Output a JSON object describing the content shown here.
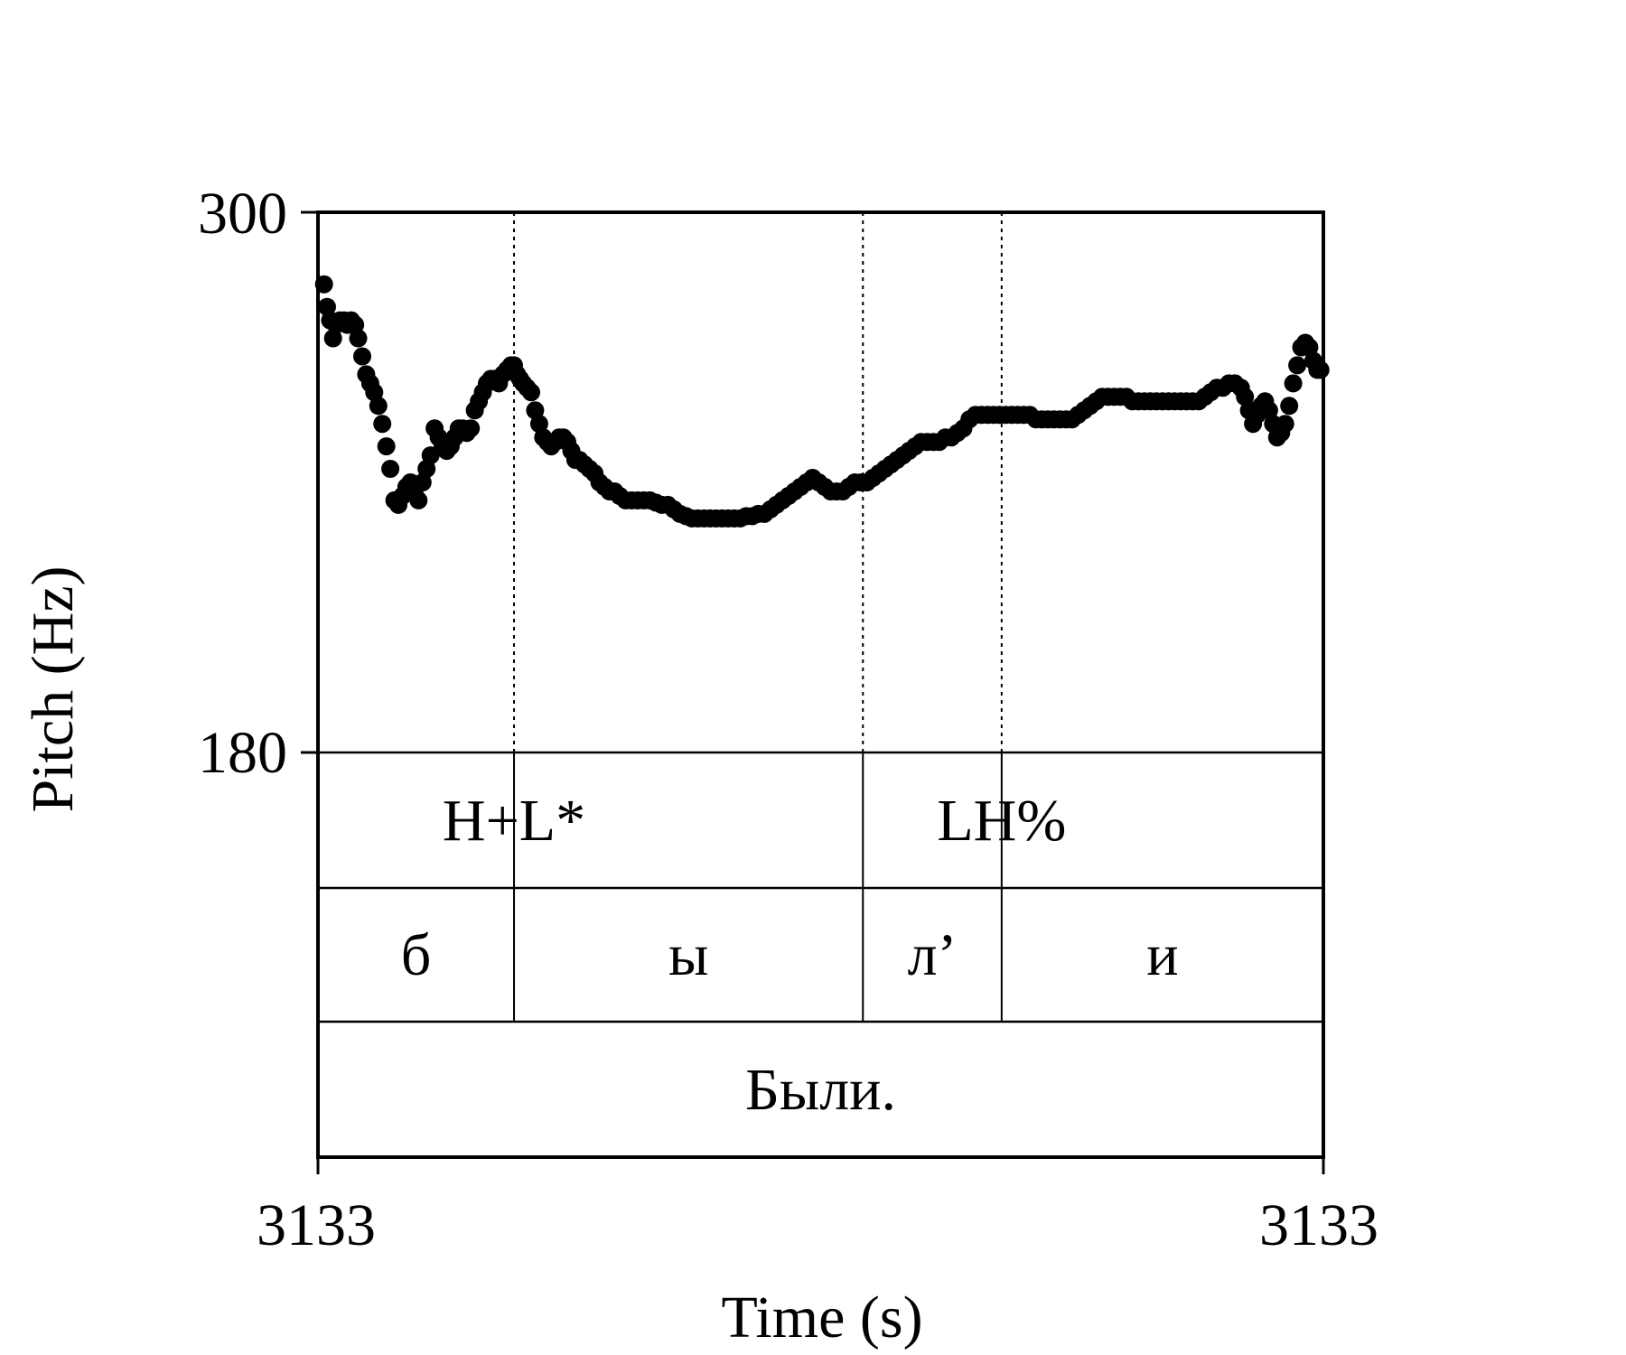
{
  "chart_data": {
    "type": "scatter",
    "title": "",
    "xlabel": "Time (s)",
    "ylabel": "Pitch (Hz)",
    "x_tick_labels": [
      "3133",
      "3133"
    ],
    "y_tick_labels": [
      "300",
      "180"
    ],
    "xlim": [
      0,
      1
    ],
    "ylim": [
      180,
      300
    ],
    "grid": false,
    "marker_color": "#000000",
    "boundaries": [
      0.195,
      0.542,
      0.68
    ],
    "tiers": [
      {
        "name": "tones",
        "intervals": [
          {
            "start": 0.0,
            "end": 0.195,
            "label": ""
          },
          {
            "start": 0.195,
            "end": 0.542,
            "label": ""
          },
          {
            "start": 0.542,
            "end": 0.68,
            "label": ""
          },
          {
            "start": 0.68,
            "end": 1.0,
            "label": ""
          }
        ],
        "tones": [
          {
            "label": "H+L*",
            "time": 0.195,
            "align": "center"
          },
          {
            "label": "LH%",
            "time": 0.68,
            "align": "center"
          }
        ]
      },
      {
        "name": "segments",
        "intervals": [
          {
            "start": 0.0,
            "end": 0.195,
            "label": "б"
          },
          {
            "start": 0.195,
            "end": 0.542,
            "label": "ы"
          },
          {
            "start": 0.542,
            "end": 0.68,
            "label": "л’"
          },
          {
            "start": 0.68,
            "end": 1.0,
            "label": "и"
          }
        ]
      },
      {
        "name": "word",
        "intervals": [
          {
            "start": 0.0,
            "end": 1.0,
            "label": "Были."
          }
        ]
      }
    ],
    "series": [
      {
        "points": [
          [
            0.006,
            284
          ],
          [
            0.009,
            279
          ],
          [
            0.012,
            276
          ],
          [
            0.015,
            272
          ],
          [
            0.018,
            275
          ],
          [
            0.022,
            276
          ],
          [
            0.026,
            276
          ],
          [
            0.029,
            275
          ],
          [
            0.033,
            276
          ],
          [
            0.037,
            275
          ],
          [
            0.04,
            272
          ],
          [
            0.044,
            268
          ],
          [
            0.048,
            264
          ],
          [
            0.052,
            262
          ],
          [
            0.056,
            260
          ],
          [
            0.06,
            257
          ],
          [
            0.064,
            253
          ],
          [
            0.068,
            248
          ],
          [
            0.072,
            243
          ],
          [
            0.076,
            236
          ],
          [
            0.08,
            235
          ],
          [
            0.084,
            237
          ],
          [
            0.088,
            239
          ],
          [
            0.092,
            240
          ],
          [
            0.096,
            238
          ],
          [
            0.1,
            236
          ],
          [
            0.104,
            240
          ],
          [
            0.108,
            243
          ],
          [
            0.112,
            246
          ],
          [
            0.116,
            252
          ],
          [
            0.12,
            250
          ],
          [
            0.124,
            248
          ],
          [
            0.128,
            247
          ],
          [
            0.132,
            248
          ],
          [
            0.136,
            250
          ],
          [
            0.14,
            252
          ],
          [
            0.144,
            252
          ],
          [
            0.148,
            251
          ],
          [
            0.152,
            252
          ],
          [
            0.156,
            256
          ],
          [
            0.16,
            258
          ],
          [
            0.164,
            260
          ],
          [
            0.168,
            262
          ],
          [
            0.172,
            263
          ],
          [
            0.176,
            263
          ],
          [
            0.18,
            262
          ],
          [
            0.184,
            264
          ],
          [
            0.188,
            265
          ],
          [
            0.192,
            266
          ],
          [
            0.195,
            266
          ],
          [
            0.198,
            264
          ],
          [
            0.201,
            263
          ],
          [
            0.204,
            262
          ],
          [
            0.208,
            261
          ],
          [
            0.212,
            260
          ],
          [
            0.216,
            256
          ],
          [
            0.22,
            253
          ],
          [
            0.224,
            250
          ],
          [
            0.228,
            249
          ],
          [
            0.232,
            248
          ],
          [
            0.236,
            249
          ],
          [
            0.24,
            250
          ],
          [
            0.244,
            250
          ],
          [
            0.248,
            249
          ],
          [
            0.252,
            247
          ],
          [
            0.256,
            245
          ],
          [
            0.26,
            245
          ],
          [
            0.265,
            244
          ],
          [
            0.27,
            243
          ],
          [
            0.275,
            242
          ],
          [
            0.28,
            240
          ],
          [
            0.285,
            239
          ],
          [
            0.29,
            238
          ],
          [
            0.295,
            238
          ],
          [
            0.3,
            237
          ],
          [
            0.306,
            236
          ],
          [
            0.312,
            236
          ],
          [
            0.318,
            236
          ],
          [
            0.324,
            236
          ],
          [
            0.33,
            236
          ],
          [
            0.336,
            235.5
          ],
          [
            0.342,
            235
          ],
          [
            0.348,
            235
          ],
          [
            0.354,
            234
          ],
          [
            0.36,
            233
          ],
          [
            0.366,
            232.5
          ],
          [
            0.372,
            232
          ],
          [
            0.378,
            232
          ],
          [
            0.384,
            232
          ],
          [
            0.39,
            232
          ],
          [
            0.396,
            232
          ],
          [
            0.402,
            232
          ],
          [
            0.408,
            232
          ],
          [
            0.414,
            232
          ],
          [
            0.42,
            232
          ],
          [
            0.426,
            232.5
          ],
          [
            0.432,
            232.5
          ],
          [
            0.438,
            233
          ],
          [
            0.444,
            233
          ],
          [
            0.45,
            234
          ],
          [
            0.456,
            235
          ],
          [
            0.462,
            236
          ],
          [
            0.468,
            237
          ],
          [
            0.474,
            238
          ],
          [
            0.48,
            239
          ],
          [
            0.486,
            240
          ],
          [
            0.492,
            241
          ],
          [
            0.498,
            240
          ],
          [
            0.504,
            239
          ],
          [
            0.51,
            238
          ],
          [
            0.516,
            238
          ],
          [
            0.522,
            238
          ],
          [
            0.528,
            239
          ],
          [
            0.534,
            240
          ],
          [
            0.54,
            240
          ],
          [
            0.546,
            240
          ],
          [
            0.552,
            241
          ],
          [
            0.558,
            242
          ],
          [
            0.564,
            243
          ],
          [
            0.57,
            244
          ],
          [
            0.576,
            245
          ],
          [
            0.582,
            246
          ],
          [
            0.588,
            247
          ],
          [
            0.594,
            248
          ],
          [
            0.6,
            249
          ],
          [
            0.606,
            249
          ],
          [
            0.612,
            249
          ],
          [
            0.618,
            249
          ],
          [
            0.624,
            250
          ],
          [
            0.63,
            250
          ],
          [
            0.636,
            251
          ],
          [
            0.642,
            252
          ],
          [
            0.648,
            254
          ],
          [
            0.654,
            255
          ],
          [
            0.66,
            255
          ],
          [
            0.666,
            255
          ],
          [
            0.672,
            255
          ],
          [
            0.678,
            255
          ],
          [
            0.684,
            255
          ],
          [
            0.69,
            255
          ],
          [
            0.696,
            255
          ],
          [
            0.702,
            255
          ],
          [
            0.708,
            255
          ],
          [
            0.714,
            254
          ],
          [
            0.72,
            254
          ],
          [
            0.726,
            254
          ],
          [
            0.732,
            254
          ],
          [
            0.738,
            254
          ],
          [
            0.744,
            254
          ],
          [
            0.75,
            254
          ],
          [
            0.756,
            255
          ],
          [
            0.762,
            256
          ],
          [
            0.768,
            257
          ],
          [
            0.774,
            258
          ],
          [
            0.78,
            259
          ],
          [
            0.786,
            259
          ],
          [
            0.792,
            259
          ],
          [
            0.798,
            259
          ],
          [
            0.804,
            259
          ],
          [
            0.81,
            258
          ],
          [
            0.816,
            258
          ],
          [
            0.822,
            258
          ],
          [
            0.828,
            258
          ],
          [
            0.834,
            258
          ],
          [
            0.84,
            258
          ],
          [
            0.846,
            258
          ],
          [
            0.852,
            258
          ],
          [
            0.858,
            258
          ],
          [
            0.864,
            258
          ],
          [
            0.87,
            258
          ],
          [
            0.876,
            258
          ],
          [
            0.882,
            259
          ],
          [
            0.888,
            260
          ],
          [
            0.894,
            261
          ],
          [
            0.9,
            261
          ],
          [
            0.906,
            262
          ],
          [
            0.912,
            262
          ],
          [
            0.918,
            261
          ],
          [
            0.922,
            259
          ],
          [
            0.926,
            256
          ],
          [
            0.93,
            253
          ],
          [
            0.934,
            255
          ],
          [
            0.938,
            257
          ],
          [
            0.942,
            258
          ],
          [
            0.946,
            256
          ],
          [
            0.95,
            253
          ],
          [
            0.954,
            250
          ],
          [
            0.958,
            251
          ],
          [
            0.962,
            253
          ],
          [
            0.966,
            257
          ],
          [
            0.97,
            262
          ],
          [
            0.974,
            266
          ],
          [
            0.978,
            270
          ],
          [
            0.982,
            271
          ],
          [
            0.986,
            270
          ],
          [
            0.99,
            267
          ],
          [
            0.994,
            265
          ],
          [
            0.997,
            265
          ]
        ]
      }
    ]
  }
}
